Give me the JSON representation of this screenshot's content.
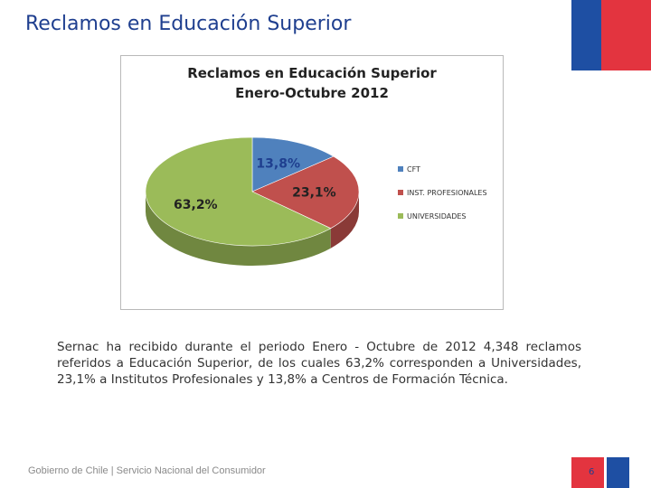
{
  "slide": {
    "title": "Reclamos en Educación Superior",
    "body": "Sernac ha recibido durante el periodo Enero - Octubre de 2012 4,348 reclamos referidos a Educación Superior, de los cuales 63,2% corresponden a Universidades, 23,1% a Institutos Profesionales y 13,8% a Centros de Formación Técnica.",
    "page_number": "6",
    "footer": "Gobierno de Chile | Servicio Nacional del Consumidor"
  },
  "colors": {
    "title": "#1f3f8f",
    "flag_blue": "#1e4fa3",
    "flag_red": "#e3343f"
  },
  "chart_data": {
    "type": "pie",
    "title": "Reclamos en Educación Superior",
    "subtitle": "Enero-Octubre 2012",
    "slices": [
      {
        "label": "CFT",
        "value": 13.8,
        "display": "13,8%",
        "color": "#4f81bd"
      },
      {
        "label": "INST. PROFESIONALES",
        "value": 23.1,
        "display": "23,1%",
        "color": "#c0504d"
      },
      {
        "label": "UNIVERSIDADES",
        "value": 63.2,
        "display": "63,2%",
        "color": "#9bbb59"
      }
    ],
    "legend_position": "right",
    "style": "3d"
  }
}
